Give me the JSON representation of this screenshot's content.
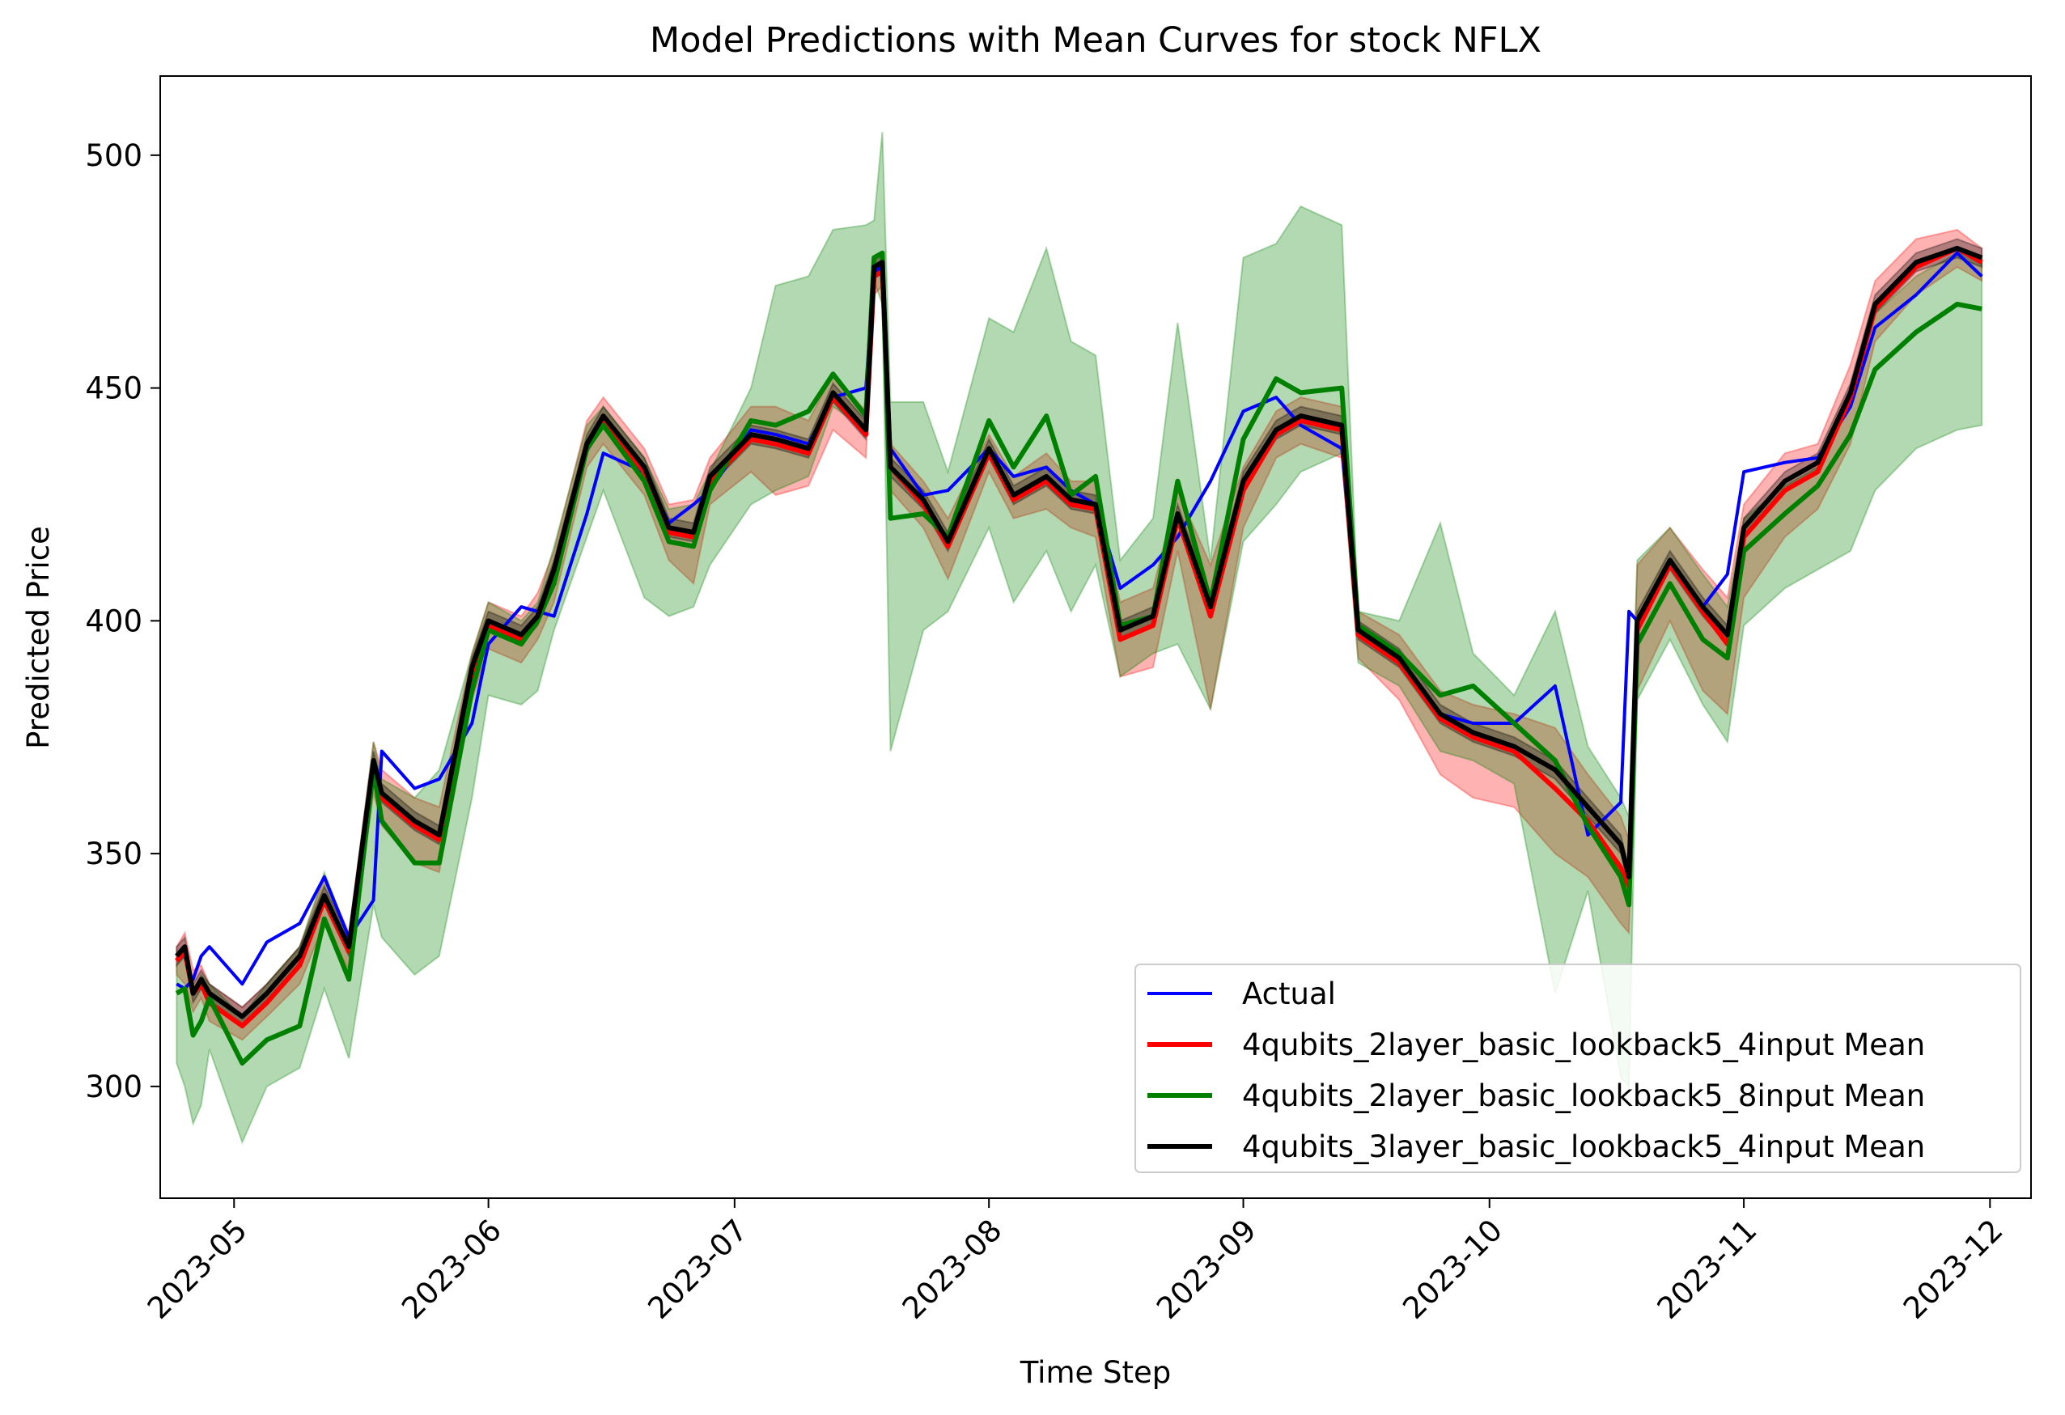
{
  "chart_data": {
    "type": "line",
    "title": "Model Predictions with Mean Curves for stock NFLX",
    "xlabel": "Time Step",
    "ylabel": "Predicted Price",
    "xlim": [
      "2023-04-22",
      "2023-12-06"
    ],
    "ylim": [
      276,
      517
    ],
    "x_ticks": [
      "2023-05-01",
      "2023-06-01",
      "2023-07-01",
      "2023-08-01",
      "2023-09-01",
      "2023-10-01",
      "2023-11-01",
      "2023-12-01"
    ],
    "x_tick_labels": [
      "2023-05",
      "2023-06",
      "2023-07",
      "2023-08",
      "2023-09",
      "2023-10",
      "2023-11",
      "2023-12"
    ],
    "y_ticks": [
      300,
      350,
      400,
      450,
      500
    ],
    "grid": false,
    "legend_position": "lower right",
    "x": [
      "2023-04-24",
      "2023-04-25",
      "2023-04-26",
      "2023-04-27",
      "2023-04-28",
      "2023-05-02",
      "2023-05-05",
      "2023-05-09",
      "2023-05-12",
      "2023-05-15",
      "2023-05-18",
      "2023-05-19",
      "2023-05-23",
      "2023-05-26",
      "2023-05-30",
      "2023-06-01",
      "2023-06-05",
      "2023-06-07",
      "2023-06-09",
      "2023-06-13",
      "2023-06-15",
      "2023-06-20",
      "2023-06-23",
      "2023-06-26",
      "2023-06-28",
      "2023-07-03",
      "2023-07-06",
      "2023-07-10",
      "2023-07-13",
      "2023-07-17",
      "2023-07-18",
      "2023-07-19",
      "2023-07-20",
      "2023-07-24",
      "2023-07-27",
      "2023-08-01",
      "2023-08-04",
      "2023-08-08",
      "2023-08-11",
      "2023-08-14",
      "2023-08-17",
      "2023-08-21",
      "2023-08-24",
      "2023-08-28",
      "2023-09-01",
      "2023-09-05",
      "2023-09-08",
      "2023-09-13",
      "2023-09-15",
      "2023-09-20",
      "2023-09-25",
      "2023-09-29",
      "2023-10-04",
      "2023-10-09",
      "2023-10-13",
      "2023-10-17",
      "2023-10-18",
      "2023-10-19",
      "2023-10-23",
      "2023-10-27",
      "2023-10-30",
      "2023-11-01",
      "2023-11-06",
      "2023-11-10",
      "2023-11-14",
      "2023-11-17",
      "2023-11-22",
      "2023-11-27",
      "2023-11-30"
    ],
    "series": [
      {
        "name": "Actual",
        "color": "#0000ff",
        "values": [
          322,
          321,
          323,
          328,
          330,
          322,
          331,
          335,
          345,
          332,
          340,
          372,
          364,
          366,
          378,
          395,
          403,
          402,
          401,
          423,
          436,
          432,
          421,
          425,
          428,
          441,
          440,
          438,
          448,
          450,
          475,
          476,
          437,
          427,
          428,
          437,
          431,
          433,
          428,
          425,
          407,
          412,
          418,
          430,
          445,
          448,
          442,
          437,
          398,
          392,
          380,
          378,
          378,
          386,
          354,
          361,
          402,
          400,
          412,
          403,
          410,
          432,
          434,
          435,
          446,
          463,
          470,
          479,
          474
        ]
      },
      {
        "name": "4qubits_2layer_basic_lookback5_4input Mean",
        "color": "#ff0000",
        "values": [
          327,
          329,
          320,
          322,
          318,
          313,
          318,
          326,
          340,
          329,
          369,
          362,
          356,
          353,
          388,
          399,
          396,
          401,
          410,
          438,
          443,
          432,
          419,
          418,
          430,
          439,
          438,
          436,
          448,
          440,
          474,
          475,
          433,
          425,
          416,
          436,
          426,
          430,
          425,
          424,
          396,
          399,
          422,
          401,
          428,
          440,
          443,
          441,
          397,
          391,
          379,
          375,
          372,
          364,
          357,
          347,
          343,
          398,
          412,
          402,
          395,
          418,
          428,
          432,
          448,
          467,
          476,
          480,
          477
        ]
      },
      {
        "name": "4qubits_2layer_basic_lookback5_8input Mean",
        "color": "#008000",
        "values": [
          320,
          321,
          311,
          314,
          319,
          305,
          310,
          313,
          336,
          323,
          368,
          357,
          348,
          348,
          385,
          398,
          395,
          400,
          408,
          437,
          442,
          430,
          417,
          416,
          428,
          443,
          442,
          445,
          453,
          444,
          478,
          479,
          422,
          423,
          418,
          443,
          433,
          444,
          427,
          431,
          399,
          401,
          430,
          404,
          439,
          452,
          449,
          450,
          399,
          393,
          384,
          386,
          378,
          370,
          356,
          345,
          339,
          395,
          408,
          396,
          392,
          415,
          423,
          429,
          440,
          454,
          462,
          468,
          467
        ]
      },
      {
        "name": "4qubits_3layer_basic_lookback5_4input Mean",
        "color": "#000000",
        "values": [
          328,
          330,
          320,
          323,
          320,
          315,
          320,
          328,
          341,
          330,
          370,
          363,
          357,
          354,
          390,
          400,
          397,
          401,
          411,
          438,
          444,
          433,
          420,
          419,
          431,
          440,
          439,
          437,
          449,
          441,
          476,
          477,
          433,
          426,
          417,
          437,
          427,
          431,
          426,
          425,
          398,
          401,
          423,
          403,
          430,
          441,
          444,
          442,
          398,
          392,
          380,
          376,
          373,
          368,
          360,
          352,
          345,
          400,
          413,
          403,
          397,
          420,
          430,
          434,
          449,
          468,
          477,
          480,
          478
        ]
      }
    ],
    "bands": [
      {
        "color": "#ff0000",
        "lower": [
          324,
          322,
          316,
          319,
          314,
          310,
          315,
          322,
          335,
          325,
          363,
          356,
          348,
          346,
          383,
          394,
          391,
          396,
          404,
          433,
          438,
          427,
          413,
          408,
          425,
          432,
          427,
          429,
          441,
          435,
          470,
          472,
          428,
          420,
          409,
          432,
          422,
          424,
          420,
          418,
          388,
          390,
          415,
          381,
          420,
          435,
          438,
          435,
          392,
          383,
          367,
          362,
          360,
          350,
          345,
          335,
          333,
          385,
          400,
          385,
          380,
          405,
          418,
          424,
          438,
          460,
          470,
          476,
          473
        ],
        "upper": [
          330,
          333,
          325,
          326,
          322,
          317,
          322,
          330,
          345,
          333,
          374,
          368,
          362,
          360,
          393,
          404,
          401,
          406,
          415,
          443,
          448,
          437,
          425,
          426,
          435,
          446,
          446,
          443,
          453,
          445,
          478,
          479,
          438,
          430,
          422,
          440,
          431,
          436,
          430,
          430,
          404,
          407,
          428,
          412,
          433,
          445,
          448,
          446,
          402,
          397,
          385,
          382,
          380,
          377,
          367,
          358,
          353,
          412,
          420,
          411,
          405,
          425,
          436,
          438,
          455,
          473,
          482,
          484,
          480
        ]
      },
      {
        "color": "#008000",
        "lower": [
          305,
          300,
          292,
          296,
          308,
          288,
          300,
          304,
          321,
          306,
          339,
          332,
          324,
          328,
          362,
          384,
          382,
          385,
          398,
          418,
          428,
          405,
          401,
          403,
          412,
          425,
          428,
          431,
          446,
          441,
          473,
          468,
          372,
          398,
          402,
          420,
          404,
          415,
          402,
          412,
          388,
          393,
          395,
          381,
          417,
          425,
          432,
          436,
          391,
          386,
          372,
          370,
          365,
          320,
          342,
          302,
          300,
          383,
          396,
          382,
          374,
          399,
          407,
          411,
          415,
          428,
          437,
          441,
          442
        ],
        "upper": [
          326,
          328,
          320,
          324,
          322,
          315,
          322,
          330,
          346,
          332,
          374,
          366,
          362,
          368,
          393,
          404,
          400,
          404,
          416,
          442,
          446,
          435,
          424,
          425,
          432,
          450,
          472,
          474,
          484,
          485,
          486,
          505,
          447,
          447,
          432,
          465,
          462,
          480,
          460,
          457,
          413,
          422,
          464,
          413,
          478,
          481,
          489,
          485,
          402,
          400,
          421,
          393,
          384,
          402,
          373,
          362,
          358,
          413,
          420,
          410,
          403,
          422,
          429,
          433,
          447,
          466,
          474,
          479,
          478
        ]
      },
      {
        "color": "#000000",
        "lower": [
          326,
          328,
          318,
          321,
          318,
          313,
          318,
          326,
          339,
          328,
          368,
          361,
          355,
          352,
          388,
          398,
          395,
          399,
          409,
          436,
          442,
          431,
          418,
          417,
          429,
          438,
          437,
          435,
          447,
          439,
          474,
          475,
          431,
          424,
          415,
          435,
          425,
          429,
          424,
          423,
          396,
          399,
          421,
          401,
          428,
          439,
          442,
          440,
          396,
          390,
          378,
          374,
          371,
          366,
          358,
          350,
          343,
          398,
          411,
          401,
          395,
          418,
          428,
          432,
          447,
          466,
          475,
          478,
          476
        ],
        "upper": [
          330,
          332,
          322,
          325,
          322,
          317,
          322,
          330,
          343,
          332,
          372,
          365,
          359,
          356,
          392,
          402,
          399,
          403,
          413,
          440,
          446,
          435,
          422,
          421,
          433,
          442,
          441,
          439,
          451,
          443,
          478,
          479,
          435,
          428,
          419,
          439,
          429,
          433,
          428,
          427,
          400,
          403,
          425,
          405,
          432,
          443,
          446,
          444,
          400,
          394,
          382,
          378,
          375,
          370,
          362,
          354,
          347,
          402,
          415,
          405,
          399,
          422,
          432,
          436,
          451,
          470,
          479,
          482,
          480
        ]
      }
    ]
  }
}
